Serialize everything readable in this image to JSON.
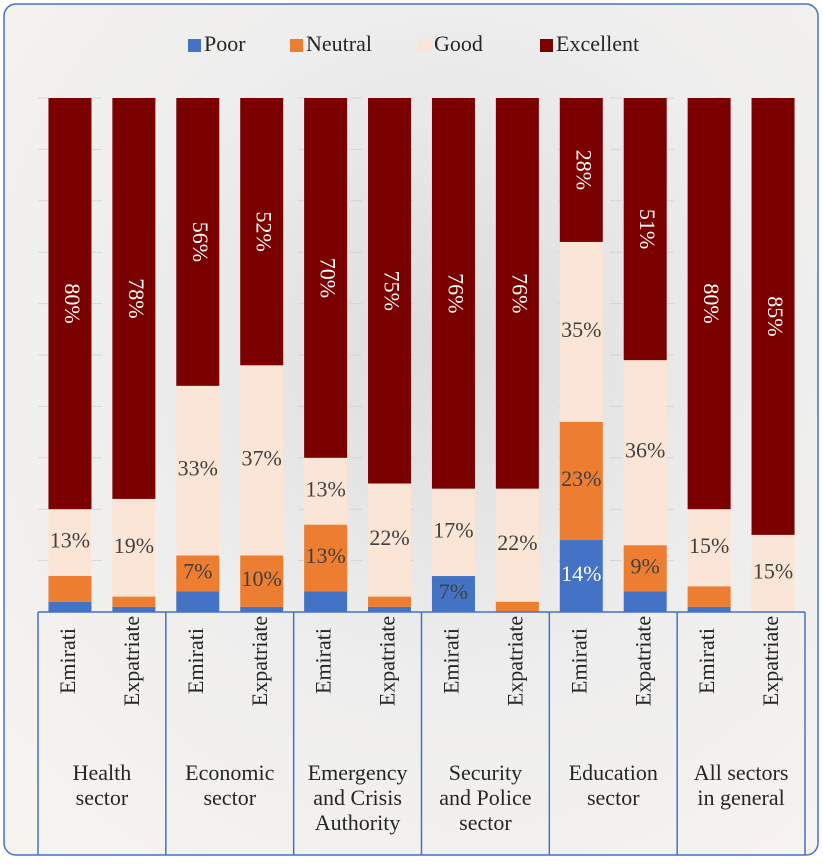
{
  "chart_data": {
    "type": "stacked_bar",
    "categories": [
      "Emirati",
      "Expatriate",
      "Emirati",
      "Expatriate",
      "Emirati",
      "Expatriate",
      "Emirati",
      "Expatriate",
      "Emirati",
      "Expatriate",
      "Emirati",
      "Expatriate"
    ],
    "group_labels": [
      [
        "Health",
        "sector"
      ],
      [
        "Economic",
        "sector"
      ],
      [
        "Emergency",
        "and Crisis",
        "Authority"
      ],
      [
        "Security",
        "and Police",
        "sector"
      ],
      [
        "Education",
        "sector"
      ],
      [
        "All sectors",
        "in general"
      ]
    ],
    "series": [
      {
        "name": "Poor",
        "color": "#4472c4",
        "values": [
          2,
          1,
          4,
          1,
          4,
          1,
          7,
          0,
          14,
          4,
          1,
          0
        ],
        "value_labels": [
          null,
          null,
          null,
          null,
          null,
          null,
          "7%",
          null,
          "14%",
          null,
          null,
          null
        ]
      },
      {
        "name": "Neutral",
        "color": "#ed7d31",
        "values": [
          5,
          2,
          7,
          10,
          13,
          2,
          0,
          2,
          23,
          9,
          4,
          0
        ],
        "value_labels": [
          null,
          null,
          "7%",
          "10%",
          "13%",
          null,
          null,
          null,
          "23%",
          "9%",
          null,
          null
        ]
      },
      {
        "name": "Good",
        "color": "#fbe5d6",
        "values": [
          13,
          19,
          33,
          37,
          13,
          22,
          17,
          22,
          35,
          36,
          15,
          15
        ],
        "value_labels": [
          "13%",
          "19%",
          "33%",
          "37%",
          "13%",
          "22%",
          "17%",
          "22%",
          "35%",
          "36%",
          "15%",
          "15%"
        ]
      },
      {
        "name": "Excellent",
        "color": "#7b0000",
        "values": [
          80,
          78,
          56,
          52,
          70,
          75,
          76,
          76,
          28,
          51,
          80,
          85
        ],
        "value_labels": [
          "80%",
          "78%",
          "56%",
          "52%",
          "70%",
          "75%",
          "76%",
          "76%",
          "28%",
          "51%",
          "80%",
          "85%"
        ]
      }
    ],
    "ylim": [
      0,
      100
    ],
    "yticks": [
      0,
      10,
      20,
      30,
      40,
      50,
      60,
      70,
      80,
      90,
      100
    ],
    "grid": true,
    "legend": "top"
  }
}
